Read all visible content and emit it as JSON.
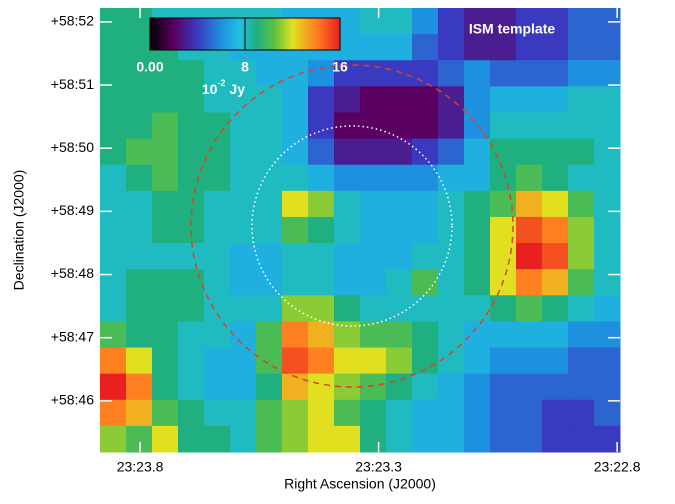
{
  "chart_data": {
    "type": "heatmap",
    "xlabel": "Right Ascension (J2000)",
    "ylabel": "Declination (J2000)",
    "annotation": "ISM template",
    "xlim": [
      23.884,
      22.794
    ],
    "xticks": [
      {
        "value": 23.8,
        "label": "23:23.8"
      },
      {
        "value": 23.3,
        "label": "23:23.3"
      },
      {
        "value": 22.8,
        "label": "23:22.8"
      }
    ],
    "ylim": [
      45.19,
      52.22
    ],
    "yticks": [
      {
        "value": 52,
        "label": "+58:52"
      },
      {
        "value": 51,
        "label": "+58:51"
      },
      {
        "value": 50,
        "label": "+58:50"
      },
      {
        "value": 49,
        "label": "+58:49"
      },
      {
        "value": 48,
        "label": "+58:48"
      },
      {
        "value": 47,
        "label": "+58:47"
      },
      {
        "value": 46,
        "label": "+58:46"
      }
    ],
    "clim": [
      0,
      16
    ],
    "cticks": [
      {
        "value": 0,
        "label": "0.00"
      },
      8,
      16
    ],
    "colorbar_label": {
      "base": "10",
      "exponent": "-2",
      "unit": "Jy"
    },
    "z": [
      [
        9,
        9,
        8,
        8,
        8,
        8,
        8,
        7,
        7,
        7,
        8,
        8,
        6,
        4,
        3,
        3,
        4,
        4,
        5,
        5
      ],
      [
        9,
        9,
        9,
        8,
        8,
        7,
        7,
        7,
        7,
        7,
        7,
        7,
        5,
        4,
        3,
        3,
        4,
        4,
        5,
        5
      ],
      [
        9,
        9,
        9,
        9,
        8,
        8,
        7,
        7,
        6,
        4,
        4,
        4,
        4,
        5,
        6,
        5,
        5,
        5,
        6,
        6
      ],
      [
        9,
        9,
        9,
        9,
        8,
        8,
        8,
        7,
        4,
        3,
        2,
        2,
        2,
        3,
        6,
        7,
        7,
        7,
        8,
        8
      ],
      [
        9,
        9,
        10,
        9,
        9,
        8,
        8,
        7,
        4,
        2,
        2,
        2,
        2,
        3,
        6,
        8,
        8,
        8,
        8,
        8
      ],
      [
        9,
        10,
        10,
        9,
        9,
        8,
        8,
        7,
        5,
        3,
        3,
        3,
        4,
        5,
        7,
        9,
        9,
        9,
        9,
        8
      ],
      [
        8,
        9,
        10,
        9,
        9,
        8,
        8,
        8,
        7,
        6,
        6,
        6,
        6,
        7,
        7,
        9,
        10,
        9,
        8,
        8
      ],
      [
        8,
        8,
        9,
        9,
        8,
        8,
        8,
        12,
        11,
        8,
        7,
        7,
        7,
        8,
        9,
        10,
        13,
        12,
        10,
        8
      ],
      [
        8,
        8,
        9,
        9,
        8,
        8,
        8,
        10,
        9,
        8,
        7,
        7,
        7,
        8,
        9,
        12,
        15,
        14,
        11,
        8
      ],
      [
        8,
        8,
        8,
        8,
        8,
        7,
        7,
        8,
        8,
        7,
        7,
        7,
        8,
        8,
        9,
        12,
        16,
        15,
        11,
        8
      ],
      [
        8,
        9,
        9,
        9,
        8,
        7,
        7,
        8,
        8,
        7,
        7,
        8,
        10,
        8,
        9,
        12,
        14,
        13,
        10,
        8
      ],
      [
        8,
        9,
        9,
        9,
        8,
        8,
        8,
        11,
        11,
        9,
        8,
        8,
        8,
        8,
        8,
        9,
        10,
        9,
        8,
        7
      ],
      [
        10,
        9,
        9,
        8,
        8,
        7,
        10,
        14,
        13,
        11,
        10,
        10,
        9,
        8,
        7,
        7,
        7,
        7,
        6,
        6
      ],
      [
        14,
        12,
        9,
        8,
        7,
        7,
        10,
        15,
        14,
        12,
        12,
        11,
        9,
        8,
        7,
        6,
        6,
        6,
        5,
        5
      ],
      [
        16,
        14,
        9,
        8,
        7,
        7,
        9,
        13,
        12,
        11,
        10,
        9,
        8,
        7,
        6,
        5,
        5,
        5,
        5,
        5
      ],
      [
        14,
        13,
        10,
        9,
        8,
        8,
        10,
        11,
        12,
        10,
        9,
        8,
        7,
        7,
        6,
        5,
        5,
        4,
        4,
        5
      ],
      [
        11,
        10,
        12,
        9,
        9,
        8,
        10,
        11,
        12,
        12,
        9,
        8,
        7,
        7,
        6,
        5,
        5,
        4,
        4,
        4
      ]
    ]
  }
}
